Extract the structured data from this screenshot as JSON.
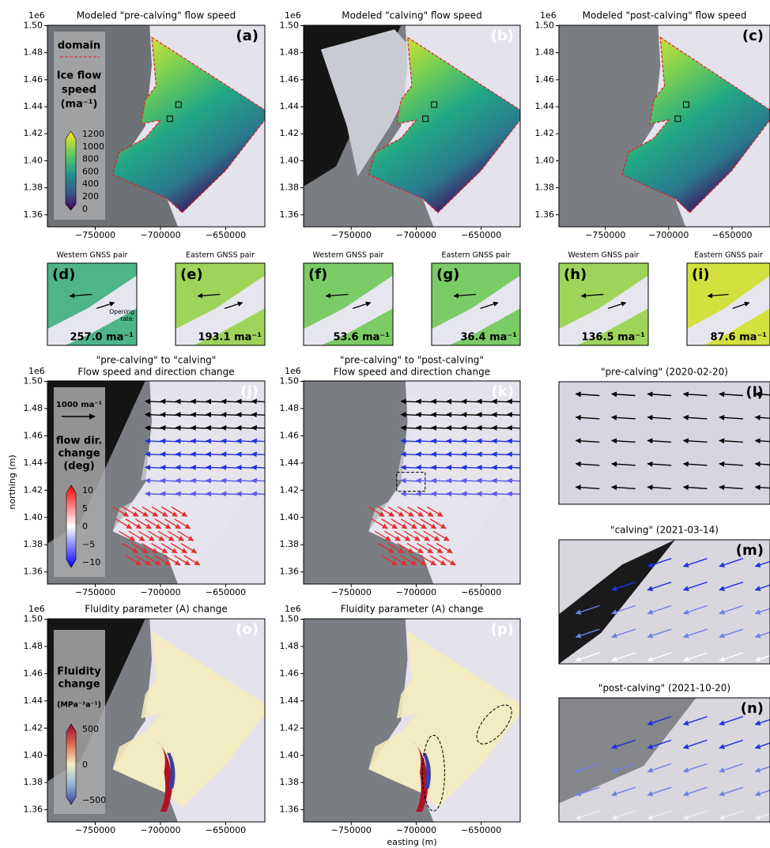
{
  "axes": {
    "y_offset": "1e6",
    "yticks": [
      "1.50",
      "1.48",
      "1.46",
      "1.44",
      "1.42",
      "1.40",
      "1.38",
      "1.36"
    ],
    "xticks": [
      "−750000",
      "−700000",
      "−650000"
    ],
    "ylabel": "northing (m)",
    "xlabel": "easting (m)"
  },
  "panels": [
    {
      "label": "(a)",
      "title": "Modeled \"pre-calving\" flow speed"
    },
    {
      "label": "(b)",
      "title": "Modeled \"calving\" flow speed"
    },
    {
      "label": "(c)",
      "title": "Modeled \"post-calving\" flow speed"
    },
    {
      "label": "(d)",
      "title": "Western GNSS pair",
      "value": "257.0 ma⁻¹",
      "note": [
        "Opening",
        "rate:"
      ]
    },
    {
      "label": "(e)",
      "title": "Eastern GNSS pair",
      "value": "193.1 ma⁻¹"
    },
    {
      "label": "(f)",
      "title": "Western GNSS pair",
      "value": "53.6 ma⁻¹"
    },
    {
      "label": "(g)",
      "title": "Eastern GNSS pair",
      "value": "36.4 ma⁻¹"
    },
    {
      "label": "(h)",
      "title": "Western GNSS pair",
      "value": "136.5 ma⁻¹"
    },
    {
      "label": "(i)",
      "title": "Eastern GNSS pair",
      "value": "87.6 ma⁻¹"
    },
    {
      "label": "(j)",
      "title_lines": [
        "\"pre-calving\" to \"calving\"",
        "Flow speed and direction change"
      ]
    },
    {
      "label": "(k)",
      "title_lines": [
        "\"pre-calving\" to \"post-calving\"",
        "Flow speed and direction change"
      ]
    },
    {
      "label": "(l)",
      "title": "\"pre-calving\" (2020-02-20)"
    },
    {
      "label": "(m)",
      "title": "\"calving\" (2021-03-14)"
    },
    {
      "label": "(n)",
      "title": "\"post-calving\" (2021-10-20)"
    },
    {
      "label": "(o)",
      "title": "Fluidity parameter (A) change"
    },
    {
      "label": "(p)",
      "title": "Fluidity parameter (A) change"
    }
  ],
  "legend_speed": {
    "domain": "domain",
    "title_lines": [
      "Ice flow",
      "speed",
      "(ma⁻¹)"
    ],
    "ticks": [
      "1200",
      "1000",
      "800",
      "600",
      "400",
      "200",
      "0"
    ]
  },
  "legend_direction": {
    "arrow": "1000 ma⁻¹",
    "title_lines": [
      "flow dir.",
      "change",
      "(deg)"
    ],
    "ticks": [
      "10",
      "5",
      "0",
      "−5",
      "−10"
    ]
  },
  "legend_fluidity": {
    "title_lines": [
      "Fluidity",
      "change"
    ],
    "unit": "(MPa⁻³a⁻¹)",
    "ticks": [
      "500",
      "0",
      "−500"
    ]
  }
}
